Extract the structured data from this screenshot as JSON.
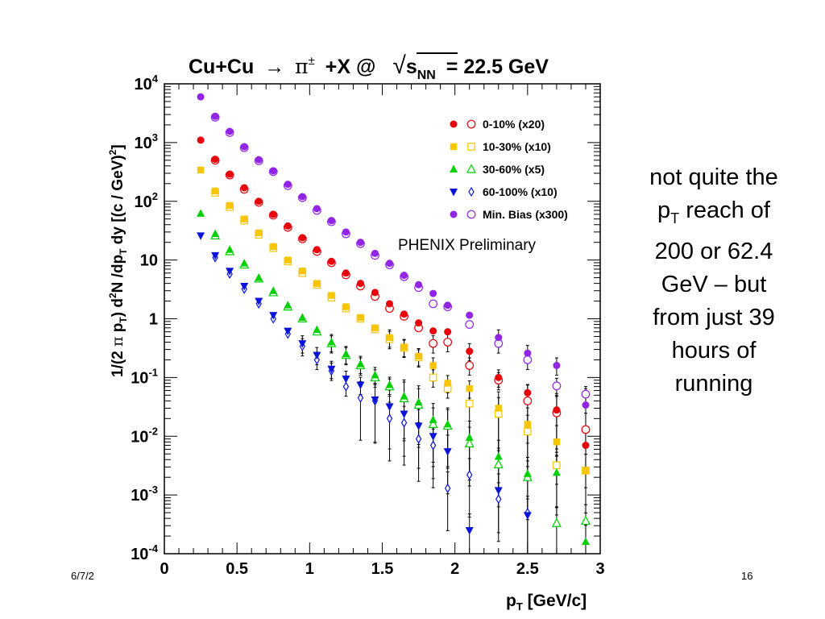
{
  "slide": {
    "annotation_lines": [
      "not quite the",
      "p",
      "T",
      " reach of",
      "200 or 62.4",
      "GeV – but",
      "from just 39",
      "hours of",
      "running"
    ],
    "footer_date": "6/7/2",
    "page_number": "16"
  },
  "chart_data": {
    "type": "scatter",
    "title": "Cu+Cu → π± +X @ √sNN = 22.5 GeV",
    "title_parts": {
      "left": "Cu+Cu",
      "arrow": "→",
      "pi": "π",
      "pm": "±",
      "mid": "+X @",
      "sqrt": "√",
      "s": "s",
      "nn": "NN",
      "energy": "= 22.5 GeV"
    },
    "xlabel": "pT [GeV/c]",
    "xlabel_parts": {
      "p": "p",
      "sub": "T",
      "rest": " [GeV/c]"
    },
    "ylabel": "1/(2 π pT) d2N /dpT dy [(c / GeV)2]",
    "ylabel_parts": {
      "a": "1/(2 ",
      "pi": "π",
      "b": " p",
      "sub1": "T",
      "c": ") d",
      "sup1": "2",
      "d": "N /dp",
      "sub2": "T",
      "e": " dy [(c / GeV)",
      "sup2": "2",
      "f": "]"
    },
    "annotation": "PHENIX Preliminary",
    "x_range": [
      0,
      3
    ],
    "y_range": [
      0.0001,
      10000
    ],
    "y_scale": "log",
    "x_ticks": [
      {
        "value": 0,
        "label": "0"
      },
      {
        "value": 0.5,
        "label": "0.5"
      },
      {
        "value": 1,
        "label": "1"
      },
      {
        "value": 1.5,
        "label": "1.5"
      },
      {
        "value": 2,
        "label": "2"
      },
      {
        "value": 2.5,
        "label": "2.5"
      },
      {
        "value": 3,
        "label": "3"
      }
    ],
    "y_ticks": [
      {
        "value": 0.0001,
        "base": "10",
        "exp": "-4"
      },
      {
        "value": 0.001,
        "base": "10",
        "exp": "-3"
      },
      {
        "value": 0.01,
        "base": "10",
        "exp": "-2"
      },
      {
        "value": 0.1,
        "base": "10",
        "exp": "-1"
      },
      {
        "value": 1,
        "base": "1",
        "exp": ""
      },
      {
        "value": 10,
        "base": "10",
        "exp": ""
      },
      {
        "value": 100,
        "base": "10",
        "exp": "2"
      },
      {
        "value": 1000,
        "base": "10",
        "exp": "3"
      },
      {
        "value": 10000,
        "base": "10",
        "exp": "4"
      }
    ],
    "legend_placement": "top-right",
    "series": [
      {
        "name": "0-10% (x20)",
        "color": "#e8000b",
        "filled_marker": "circle",
        "open_marker": "circle",
        "x": [
          0.25,
          0.35,
          0.45,
          0.55,
          0.65,
          0.75,
          0.85,
          0.95,
          1.05,
          1.15,
          1.25,
          1.35,
          1.45,
          1.55,
          1.65,
          1.75,
          1.85,
          1.95,
          2.1,
          2.3,
          2.5,
          2.7,
          2.9
        ],
        "filled": [
          1100,
          520,
          290,
          170,
          100,
          60,
          38,
          24,
          15,
          9.5,
          6,
          4,
          2.8,
          1.8,
          1.2,
          0.85,
          0.62,
          0.6,
          0.28,
          0.1,
          0.055,
          0.028,
          0.007
        ],
        "open": [
          null,
          500,
          280,
          160,
          96,
          58,
          36,
          23,
          14,
          9,
          5.6,
          3.6,
          2.4,
          1.5,
          1.1,
          0.7,
          0.38,
          0.4,
          0.16,
          0.09,
          0.04,
          0.025,
          0.013
        ]
      },
      {
        "name": "10-30% (x10)",
        "color": "#f7c600",
        "filled_marker": "square",
        "open_marker": "square",
        "x": [
          0.25,
          0.35,
          0.45,
          0.55,
          0.65,
          0.75,
          0.85,
          0.95,
          1.05,
          1.15,
          1.25,
          1.35,
          1.45,
          1.55,
          1.65,
          1.75,
          1.85,
          1.95,
          2.1,
          2.3,
          2.5,
          2.7,
          2.9
        ],
        "filled": [
          340,
          150,
          85,
          50,
          29,
          17,
          10,
          6.5,
          4,
          2.5,
          1.6,
          1.05,
          0.7,
          0.48,
          0.33,
          0.23,
          0.16,
          0.08,
          0.065,
          0.03,
          0.016,
          0.008,
          0.0026
        ],
        "open": [
          null,
          140,
          80,
          47,
          27,
          16,
          9.5,
          6,
          3.8,
          2.3,
          1.5,
          1,
          0.66,
          0.45,
          0.32,
          0.22,
          0.1,
          0.065,
          0.036,
          0.024,
          0.012,
          0.0032,
          0.0026
        ]
      },
      {
        "name": "30-60% (x5)",
        "color": "#00d000",
        "filled_marker": "triangle-up",
        "open_marker": "triangle-up",
        "x": [
          0.25,
          0.35,
          0.45,
          0.55,
          0.65,
          0.75,
          0.85,
          0.95,
          1.05,
          1.15,
          1.25,
          1.35,
          1.45,
          1.55,
          1.65,
          1.75,
          1.85,
          1.95,
          2.1,
          2.3,
          2.5,
          2.7,
          2.9
        ],
        "filled": [
          62,
          28,
          15,
          8.8,
          5,
          3,
          1.7,
          1.05,
          0.65,
          0.4,
          0.25,
          0.17,
          0.11,
          0.075,
          0.048,
          0.038,
          0.019,
          0.016,
          0.0095,
          0.0045,
          0.0023,
          0.0024,
          0.00016
        ],
        "open": [
          null,
          26,
          14,
          8.3,
          4.8,
          2.8,
          1.6,
          1,
          0.6,
          0.38,
          0.24,
          0.16,
          0.1,
          0.07,
          0.044,
          0.034,
          0.016,
          0.015,
          0.0075,
          0.0033,
          0.002,
          0.00033,
          0.00036
        ]
      },
      {
        "name": "60-100% (x10)",
        "color": "#0a14d8",
        "filled_marker": "triangle-down",
        "open_marker": "diamond",
        "x": [
          0.25,
          0.35,
          0.45,
          0.55,
          0.65,
          0.75,
          0.85,
          0.95,
          1.05,
          1.15,
          1.25,
          1.35,
          1.45,
          1.55,
          1.65,
          1.75,
          1.85,
          1.95,
          2.1,
          2.3,
          2.5,
          2.7,
          2.9
        ],
        "filled": [
          26,
          12,
          6.5,
          3.6,
          2,
          1.15,
          0.62,
          0.38,
          0.24,
          0.14,
          0.095,
          0.075,
          0.042,
          0.032,
          0.024,
          0.015,
          0.01,
          0.0055,
          0.00025,
          0.0012,
          0.00045,
          null,
          null
        ],
        "open": [
          null,
          11,
          5.8,
          3.2,
          1.8,
          1,
          0.55,
          0.34,
          0.2,
          0.13,
          0.07,
          0.045,
          0.04,
          0.02,
          0.017,
          0.009,
          0.007,
          0.0013,
          0.0022,
          0.00085,
          0.0005,
          null,
          null
        ]
      },
      {
        "name": "Min. Bias (x300)",
        "color": "#9224e6",
        "filled_marker": "circle",
        "open_marker": "circle",
        "x": [
          0.25,
          0.35,
          0.45,
          0.55,
          0.65,
          0.75,
          0.85,
          0.95,
          1.05,
          1.15,
          1.25,
          1.35,
          1.45,
          1.55,
          1.65,
          1.75,
          1.85,
          1.95,
          2.1,
          2.3,
          2.5,
          2.7,
          2.9
        ],
        "filled": [
          6000,
          2800,
          1550,
          850,
          510,
          330,
          195,
          120,
          75,
          47,
          30,
          20,
          13,
          8.8,
          5.5,
          3.8,
          2.7,
          1.7,
          1.15,
          0.48,
          0.26,
          0.16,
          0.034
        ],
        "open": [
          null,
          2700,
          1480,
          820,
          490,
          320,
          185,
          115,
          70,
          45,
          28,
          19,
          12,
          8.3,
          5.2,
          3.4,
          1.8,
          1.6,
          0.8,
          0.38,
          0.2,
          0.072,
          0.052
        ]
      }
    ]
  }
}
